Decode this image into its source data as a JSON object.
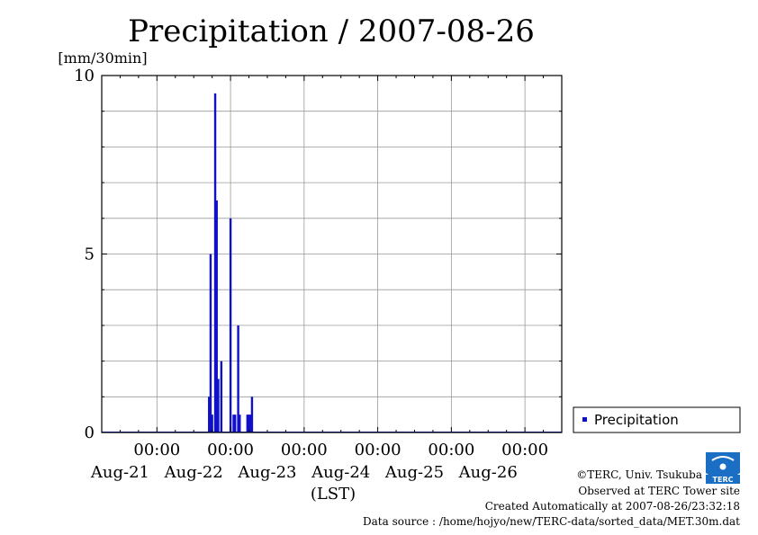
{
  "chart_data": {
    "type": "bar",
    "title": "Precipitation / 2007-08-26",
    "ylabel": "[mm/30min]",
    "xlabel": "(LST)",
    "ylim": [
      0,
      10
    ],
    "y_ticks": [
      "0",
      "5",
      "10"
    ],
    "x_range_hours": [
      -18,
      132
    ],
    "time_tick_label": "00:00",
    "date_labels": [
      "Aug-21",
      "Aug-22",
      "Aug-23",
      "Aug-24",
      "Aug-25",
      "Aug-26"
    ],
    "grid": true,
    "legend_position": "right",
    "series": [
      {
        "name": "Precipitation",
        "color": "#1010c8",
        "points": [
          {
            "time": "2007-08-22 17:00",
            "value": 1.0
          },
          {
            "time": "2007-08-22 17:30",
            "value": 5.0
          },
          {
            "time": "2007-08-22 18:00",
            "value": 0.5
          },
          {
            "time": "2007-08-22 19:00",
            "value": 9.5
          },
          {
            "time": "2007-08-22 19:30",
            "value": 6.5
          },
          {
            "time": "2007-08-22 20:00",
            "value": 1.5
          },
          {
            "time": "2007-08-22 21:00",
            "value": 2.0
          },
          {
            "time": "2007-08-23 00:00",
            "value": 6.0
          },
          {
            "time": "2007-08-23 01:00",
            "value": 0.5
          },
          {
            "time": "2007-08-23 01:30",
            "value": 0.5
          },
          {
            "time": "2007-08-23 02:30",
            "value": 3.0
          },
          {
            "time": "2007-08-23 03:00",
            "value": 0.5
          },
          {
            "time": "2007-08-23 05:30",
            "value": 0.5
          },
          {
            "time": "2007-08-23 06:00",
            "value": 0.5
          },
          {
            "time": "2007-08-23 06:30",
            "value": 0.5
          },
          {
            "time": "2007-08-23 07:00",
            "value": 1.0
          }
        ]
      }
    ]
  },
  "footer": {
    "copyright": "©TERC, Univ. Tsukuba",
    "site": "Observed at TERC Tower site",
    "created": "Created Automatically at 2007-08-26/23:32:18",
    "source": "Data source : /home/hojyo/new/TERC-data/sorted_data/MET.30m.dat"
  },
  "logo": {
    "text": "TERC",
    "color": "#1a6fc4"
  }
}
